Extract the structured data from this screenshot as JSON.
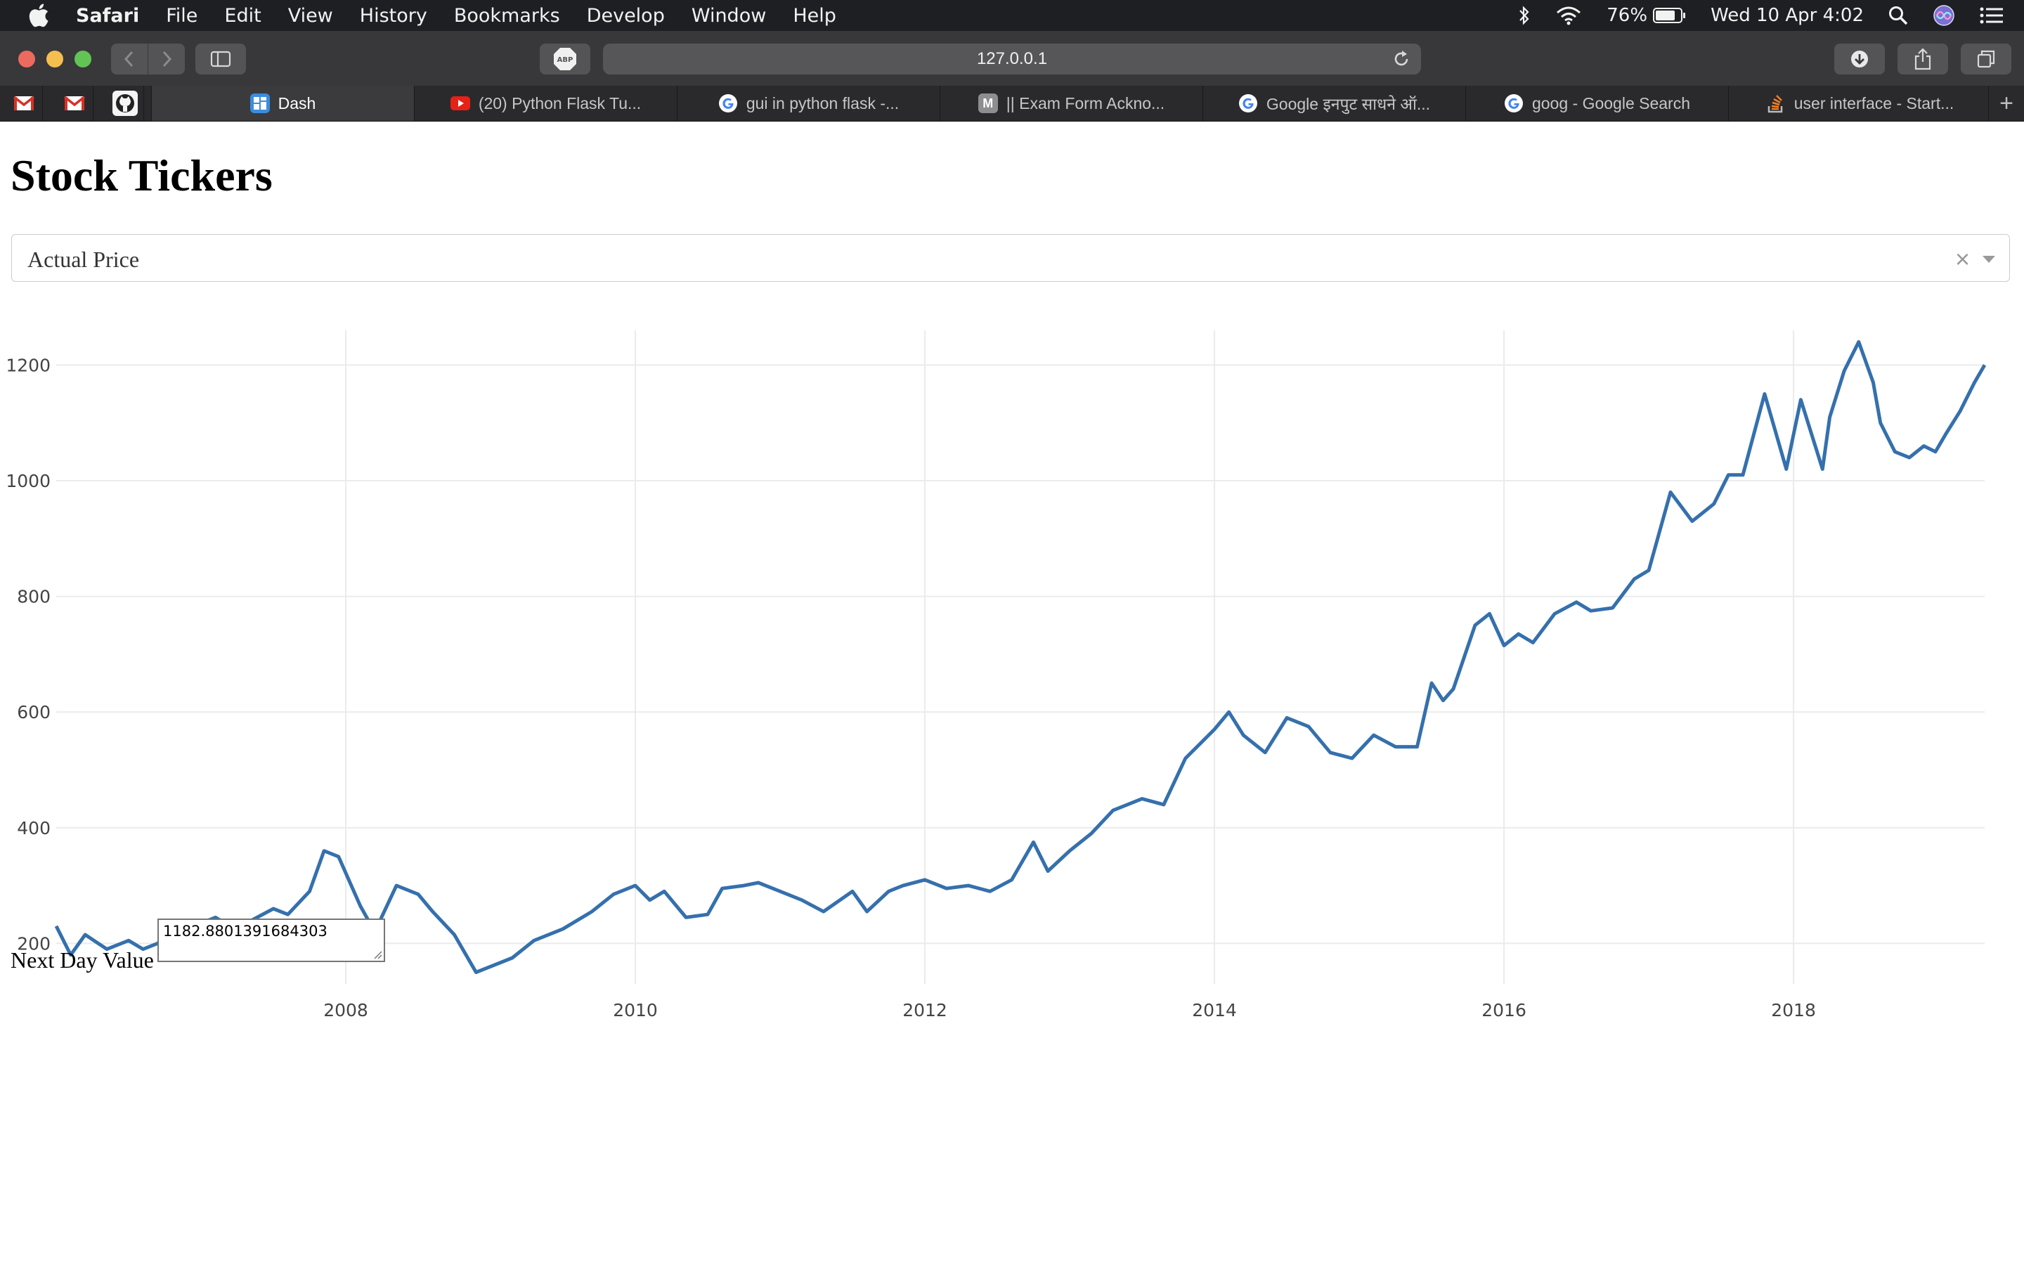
{
  "menubar": {
    "app_name": "Safari",
    "items": [
      "File",
      "Edit",
      "View",
      "History",
      "Bookmarks",
      "Develop",
      "Window",
      "Help"
    ],
    "battery_percent": "76%",
    "clock": "Wed 10 Apr  4:02"
  },
  "toolbar": {
    "adblock_label": "ABP",
    "url": "127.0.0.1"
  },
  "tabs": [
    {
      "title": "Dash",
      "icon": "dash-icon",
      "active": true
    },
    {
      "title": "(20) Python Flask Tu...",
      "icon": "youtube-icon",
      "active": false
    },
    {
      "title": "gui in python flask -...",
      "icon": "google-icon",
      "active": false
    },
    {
      "title": "|| Exam Form Ackno...",
      "icon": "m-icon",
      "active": false
    },
    {
      "title": "Google इनपुट साधने ऑ...",
      "icon": "google-icon",
      "active": false
    },
    {
      "title": "goog - Google Search",
      "icon": "google-icon",
      "active": false
    },
    {
      "title": "user interface - Start...",
      "icon": "stackoverflow-icon",
      "active": false
    }
  ],
  "pinned_tabs": [
    "gmail-icon",
    "gmail-icon",
    "github-icon"
  ],
  "page": {
    "title": "Stock Tickers",
    "dropdown_value": "Actual Price",
    "next_day_label": "Next Day Value",
    "next_day_value": "1182.8801391684303"
  },
  "colors": {
    "line": "#3570ad",
    "grid": "#ebebeb"
  },
  "chart_data": {
    "type": "line",
    "title": "",
    "xlabel": "",
    "ylabel": "",
    "xlim": [
      2006.0,
      2019.32
    ],
    "ylim": [
      130,
      1260
    ],
    "x_ticks": [
      2008,
      2010,
      2012,
      2014,
      2016,
      2018
    ],
    "y_ticks": [
      200,
      400,
      600,
      800,
      1000,
      1200
    ],
    "series": [
      {
        "x": [
          2006.0,
          2006.1,
          2006.2,
          2006.35,
          2006.5,
          2006.6,
          2006.7,
          2006.85,
          2007.0,
          2007.1,
          2007.2,
          2007.35,
          2007.5,
          2007.6,
          2007.75,
          2007.85,
          2007.95,
          2008.1,
          2008.2,
          2008.35,
          2008.5,
          2008.6,
          2008.75,
          2008.9,
          2009.0,
          2009.15,
          2009.3,
          2009.5,
          2009.7,
          2009.85,
          2010.0,
          2010.1,
          2010.2,
          2010.35,
          2010.5,
          2010.6,
          2010.75,
          2010.85,
          2011.0,
          2011.15,
          2011.3,
          2011.5,
          2011.6,
          2011.75,
          2011.85,
          2012.0,
          2012.15,
          2012.3,
          2012.45,
          2012.6,
          2012.75,
          2012.85,
          2013.0,
          2013.15,
          2013.3,
          2013.5,
          2013.65,
          2013.8,
          2013.9,
          2014.0,
          2014.1,
          2014.2,
          2014.35,
          2014.5,
          2014.65,
          2014.8,
          2014.95,
          2015.1,
          2015.25,
          2015.4,
          2015.5,
          2015.58,
          2015.65,
          2015.8,
          2015.9,
          2016.0,
          2016.1,
          2016.2,
          2016.35,
          2016.5,
          2016.6,
          2016.75,
          2016.9,
          2017.0,
          2017.15,
          2017.3,
          2017.45,
          2017.55,
          2017.65,
          2017.8,
          2017.95,
          2018.05,
          2018.1,
          2018.2,
          2018.25,
          2018.35,
          2018.45,
          2018.55,
          2018.6,
          2018.7,
          2018.8,
          2018.9,
          2018.98,
          2019.05,
          2019.15,
          2019.25,
          2019.32
        ],
        "y": [
          230,
          180,
          215,
          190,
          205,
          190,
          200,
          240,
          235,
          245,
          230,
          240,
          260,
          250,
          290,
          360,
          350,
          265,
          220,
          300,
          285,
          255,
          215,
          150,
          160,
          175,
          205,
          225,
          255,
          285,
          300,
          275,
          290,
          245,
          250,
          295,
          300,
          305,
          290,
          275,
          255,
          290,
          255,
          290,
          300,
          310,
          295,
          300,
          290,
          310,
          375,
          325,
          360,
          390,
          430,
          450,
          440,
          520,
          545,
          570,
          600,
          560,
          530,
          590,
          575,
          530,
          520,
          560,
          540,
          540,
          650,
          620,
          640,
          750,
          770,
          715,
          735,
          720,
          770,
          790,
          775,
          780,
          830,
          845,
          980,
          930,
          960,
          1010,
          1010,
          1150,
          1020,
          1140,
          1100,
          1020,
          1110,
          1190,
          1240,
          1170,
          1100,
          1050,
          1040,
          1060,
          1050,
          1080,
          1120,
          1170,
          1200
        ]
      }
    ]
  }
}
